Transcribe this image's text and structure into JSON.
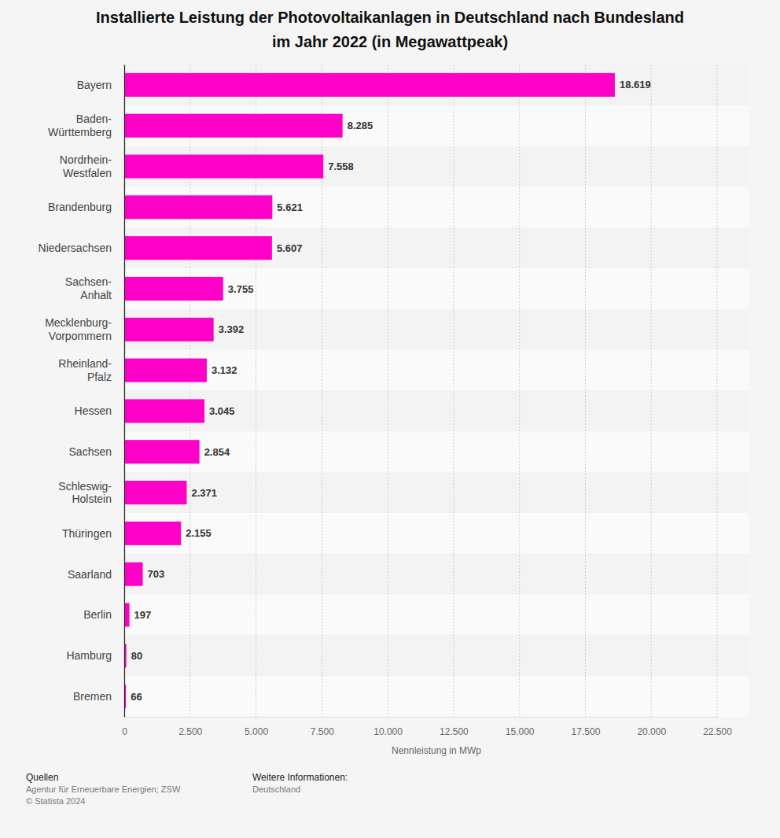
{
  "chart_data": {
    "type": "bar",
    "orientation": "horizontal",
    "title": "Installierte Leistung der Photovoltaikanlagen in Deutschland nach Bundesland\nim Jahr 2022 (in Megawattpeak)",
    "x_label": "Nennleistung in MWp",
    "categories": [
      "Bayern",
      "Baden-Württemberg",
      "Nordrhein-Westfalen",
      "Brandenburg",
      "Niedersachsen",
      "Sachsen-Anhalt",
      "Mecklenburg-Vorpommern",
      "Rheinland-Pfalz",
      "Hessen",
      "Sachsen",
      "Schleswig-Holstein",
      "Thüringen",
      "Saarland",
      "Berlin",
      "Hamburg",
      "Bremen"
    ],
    "values": [
      18619,
      8285,
      7558,
      5621,
      5607,
      3755,
      3392,
      3132,
      3045,
      2854,
      2371,
      2155,
      703,
      197,
      80,
      66
    ],
    "value_labels": [
      "18.619",
      "8.285",
      "7.558",
      "5.621",
      "5.607",
      "3.755",
      "3.392",
      "3.132",
      "3.045",
      "2.854",
      "2.371",
      "2.155",
      "703",
      "197",
      "80",
      "66"
    ],
    "color": "#ff00c8",
    "xlim": [
      0,
      22500
    ],
    "xticks": [
      0,
      {
        "value": 2500,
        "label": "2.500"
      },
      {
        "value": 5000,
        "label": "5.000"
      },
      {
        "value": 7500,
        "label": "7.500"
      },
      {
        "value": 10000,
        "label": "10.000"
      },
      {
        "value": 12500,
        "label": "12.500"
      },
      {
        "value": 15000,
        "label": "15.000"
      },
      {
        "value": 17500,
        "label": "17.500"
      },
      {
        "value": 20000,
        "label": "20.000"
      },
      {
        "value": 22500,
        "label": "22.500"
      }
    ],
    "grid": true,
    "data_labels": true,
    "annotations": [
      "Quellen",
      "Agentur für Erneuerbare Energien; ZSW",
      "© Statista 2024",
      "Weitere Informationen:",
      "Deutschland"
    ]
  }
}
